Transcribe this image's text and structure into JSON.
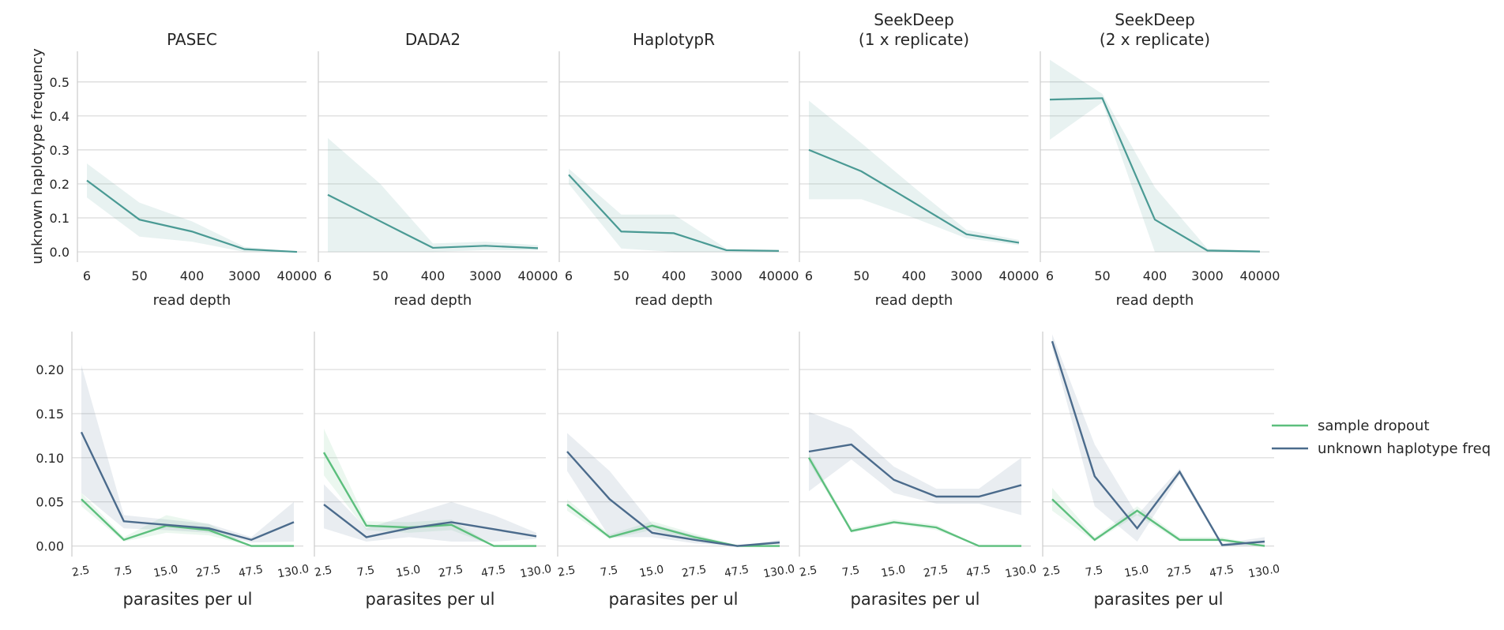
{
  "colors": {
    "teal": "#4a9a94",
    "sample_dropout": "#5cbf7d",
    "unknown_haplotype_freq": "#4b6b8c",
    "grid": "#d9d9d9",
    "spine": "#cccccc"
  },
  "legend": {
    "items": [
      {
        "label": "sample dropout",
        "color": "#5cbf7d"
      },
      {
        "label": "unknown haplotype freq",
        "color": "#4b6b8c"
      }
    ]
  },
  "chart_data": [
    {
      "type": "line",
      "row": "top",
      "ylabel": "unknown haplotype frequency",
      "xlabel": "read depth",
      "x_ticks": [
        "6",
        "50",
        "400",
        "3000",
        "40000"
      ],
      "y_ticks": [
        "0.0",
        "0.1",
        "0.2",
        "0.3",
        "0.4",
        "0.5"
      ],
      "ylim": [
        -0.03,
        0.59
      ],
      "grid": true,
      "panels": [
        {
          "title": "PASEC",
          "values": [
            0.21,
            0.095,
            0.06,
            0.008,
            0.0
          ],
          "ci_low": [
            0.16,
            0.045,
            0.03,
            0.0,
            0.0
          ],
          "ci_high": [
            0.26,
            0.145,
            0.09,
            0.015,
            0.0
          ]
        },
        {
          "title": "DADA2",
          "values": [
            0.168,
            0.09,
            0.012,
            0.018,
            0.011
          ],
          "ci_low": [
            0.0,
            0.0,
            0.0,
            0.005,
            0.005
          ],
          "ci_high": [
            0.335,
            0.2,
            0.025,
            0.03,
            0.02
          ]
        },
        {
          "title": "HaplotypR",
          "values": [
            0.227,
            0.06,
            0.055,
            0.005,
            0.003
          ],
          "ci_low": [
            0.2,
            0.01,
            0.0,
            0.0,
            0.0
          ],
          "ci_high": [
            0.245,
            0.11,
            0.11,
            0.01,
            0.006
          ]
        },
        {
          "title": "SeekDeep\n(1 x replicate)",
          "values": [
            0.3,
            0.237,
            0.145,
            0.052,
            0.027
          ],
          "ci_low": [
            0.155,
            0.155,
            0.1,
            0.04,
            0.02
          ],
          "ci_high": [
            0.445,
            0.32,
            0.19,
            0.065,
            0.035
          ]
        },
        {
          "title": "SeekDeep\n(2 x replicate)",
          "values": [
            0.448,
            0.452,
            0.095,
            0.004,
            0.001
          ],
          "ci_low": [
            0.33,
            0.44,
            0.0,
            0.0,
            0.0
          ],
          "ci_high": [
            0.565,
            0.465,
            0.19,
            0.01,
            0.003
          ]
        }
      ]
    },
    {
      "type": "line",
      "row": "bottom",
      "xlabel": "parasites per ul",
      "x_ticks": [
        "2.5",
        "7.5",
        "15.0",
        "27.5",
        "47.5",
        "130.0"
      ],
      "y_ticks": [
        "0.00",
        "0.05",
        "0.10",
        "0.15",
        "0.20"
      ],
      "ylim": [
        -0.012,
        0.243
      ],
      "grid": true,
      "series_names": [
        "sample dropout",
        "unknown haplotype freq"
      ],
      "panels": [
        {
          "sample_dropout": [
            0.053,
            0.007,
            0.023,
            0.018,
            0.0,
            0.0
          ],
          "sample_dropout_ci_low": [
            0.045,
            0.005,
            0.015,
            0.012,
            0.0,
            0.0
          ],
          "sample_dropout_ci_high": [
            0.06,
            0.01,
            0.035,
            0.025,
            0.0,
            0.0
          ],
          "unknown_haplotype_freq": [
            0.129,
            0.028,
            0.024,
            0.02,
            0.007,
            0.027
          ],
          "unknown_haplotype_freq_ci_low": [
            0.06,
            0.02,
            0.018,
            0.015,
            0.004,
            0.005
          ],
          "unknown_haplotype_freq_ci_high": [
            0.205,
            0.035,
            0.03,
            0.025,
            0.01,
            0.05
          ]
        },
        {
          "sample_dropout": [
            0.106,
            0.023,
            0.021,
            0.024,
            0.0,
            0.0
          ],
          "sample_dropout_ci_low": [
            0.08,
            0.018,
            0.015,
            0.018,
            0.0,
            0.0
          ],
          "sample_dropout_ci_high": [
            0.133,
            0.028,
            0.027,
            0.03,
            0.0,
            0.0
          ],
          "unknown_haplotype_freq": [
            0.047,
            0.01,
            0.02,
            0.027,
            0.019,
            0.011
          ],
          "unknown_haplotype_freq_ci_low": [
            0.02,
            0.005,
            0.01,
            0.005,
            0.005,
            0.008
          ],
          "unknown_haplotype_freq_ci_high": [
            0.07,
            0.02,
            0.035,
            0.05,
            0.035,
            0.015
          ]
        },
        {
          "sample_dropout": [
            0.047,
            0.01,
            0.023,
            0.01,
            0.0,
            0.0
          ],
          "sample_dropout_ci_low": [
            0.04,
            0.008,
            0.018,
            0.006,
            0.0,
            0.0
          ],
          "sample_dropout_ci_high": [
            0.053,
            0.013,
            0.028,
            0.014,
            0.0,
            0.0
          ],
          "unknown_haplotype_freq": [
            0.107,
            0.053,
            0.015,
            0.007,
            0.0,
            0.004
          ],
          "unknown_haplotype_freq_ci_low": [
            0.085,
            0.01,
            0.01,
            0.003,
            0.0,
            0.002
          ],
          "unknown_haplotype_freq_ci_high": [
            0.128,
            0.085,
            0.025,
            0.012,
            0.0,
            0.007
          ]
        },
        {
          "sample_dropout": [
            0.1,
            0.017,
            0.027,
            0.021,
            0.0,
            0.0
          ],
          "sample_dropout_ci_low": [
            0.095,
            0.015,
            0.025,
            0.018,
            0.0,
            0.0
          ],
          "sample_dropout_ci_high": [
            0.105,
            0.02,
            0.03,
            0.024,
            0.0,
            0.0
          ],
          "unknown_haplotype_freq": [
            0.107,
            0.115,
            0.075,
            0.056,
            0.056,
            0.069
          ],
          "unknown_haplotype_freq_ci_low": [
            0.062,
            0.098,
            0.06,
            0.048,
            0.048,
            0.035
          ],
          "unknown_haplotype_freq_ci_high": [
            0.152,
            0.133,
            0.09,
            0.065,
            0.065,
            0.1
          ]
        },
        {
          "sample_dropout": [
            0.053,
            0.007,
            0.04,
            0.007,
            0.007,
            0.0
          ],
          "sample_dropout_ci_low": [
            0.04,
            0.005,
            0.035,
            0.005,
            0.005,
            0.0
          ],
          "sample_dropout_ci_high": [
            0.066,
            0.01,
            0.045,
            0.01,
            0.01,
            0.0
          ],
          "unknown_haplotype_freq": [
            0.232,
            0.079,
            0.02,
            0.084,
            0.001,
            0.005
          ],
          "unknown_haplotype_freq_ci_low": [
            0.225,
            0.045,
            0.005,
            0.08,
            0.0,
            0.0
          ],
          "unknown_haplotype_freq_ci_high": [
            0.24,
            0.115,
            0.035,
            0.088,
            0.003,
            0.01
          ]
        }
      ]
    }
  ]
}
